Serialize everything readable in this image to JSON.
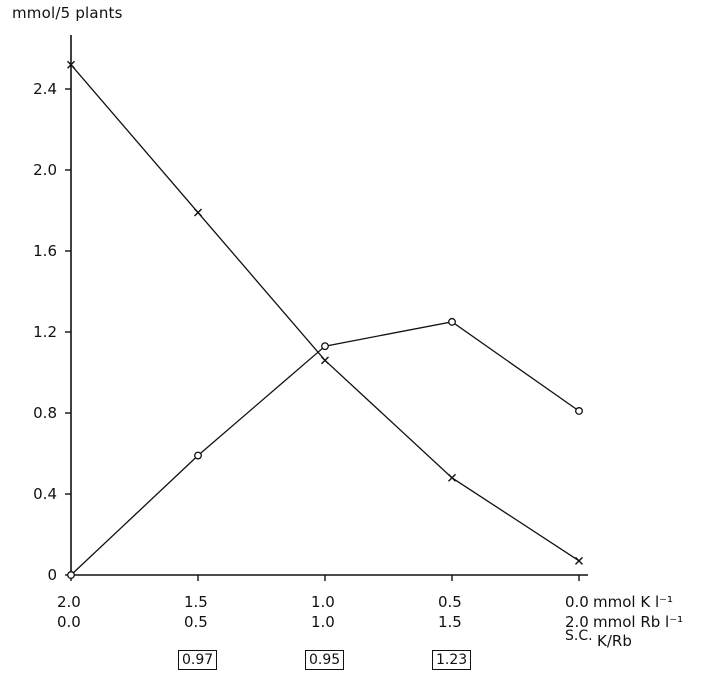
{
  "chart_data": {
    "type": "line",
    "ylabel": "mmol/5 plants",
    "ylim": [
      0,
      2.6
    ],
    "yticks": [
      "0",
      "0.4",
      "0.8",
      "1.2",
      "1.6",
      "2.0",
      "2.4"
    ],
    "ytick_values": [
      0,
      0.4,
      0.8,
      1.2,
      1.6,
      2.0,
      2.4
    ],
    "x_categories_K": [
      "2.0",
      "1.5",
      "1.0",
      "0.5",
      "0.0"
    ],
    "x_categories_Rb": [
      "0.0",
      "0.5",
      "1.0",
      "1.5",
      "2.0"
    ],
    "x_unit_K": "mmol K l⁻¹",
    "x_unit_Rb": "mmol Rb l⁻¹",
    "series": [
      {
        "marker": "x",
        "values": [
          2.52,
          1.79,
          1.06,
          0.48,
          0.07
        ]
      },
      {
        "marker": "o",
        "values": [
          0.0,
          0.59,
          1.13,
          1.25,
          0.81
        ]
      }
    ],
    "sc": {
      "label": "S.C.",
      "subscript": "K/Rb",
      "values": [
        "0.97",
        "0.95",
        "1.23"
      ]
    },
    "grid": false
  }
}
